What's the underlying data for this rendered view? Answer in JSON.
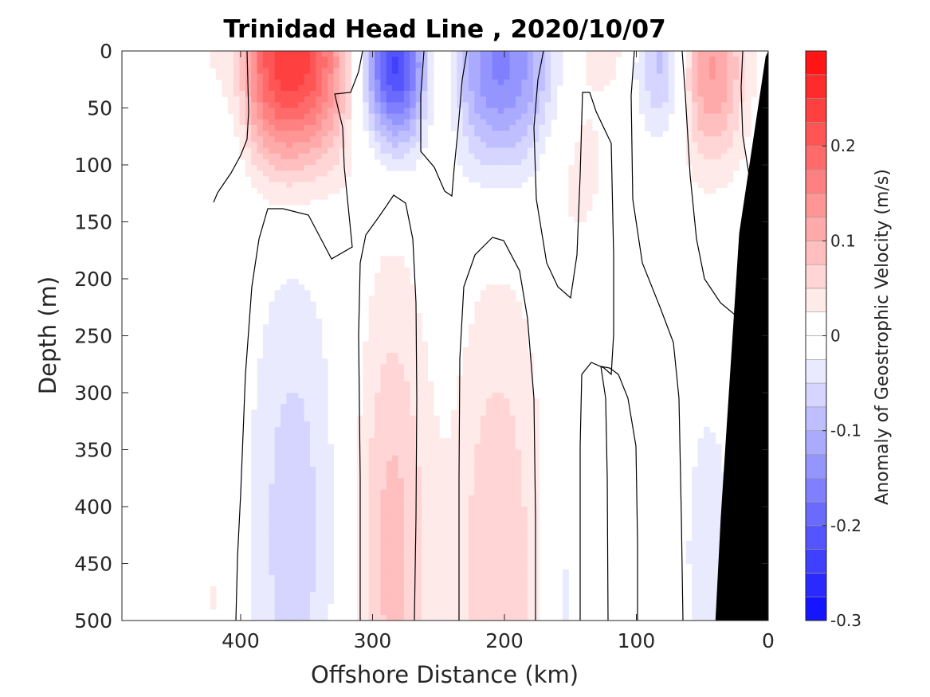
{
  "chart_data": {
    "type": "heatmap",
    "title": "Trinidad Head Line , 2020/10/07",
    "xlabel": "Offshore Distance (km)",
    "ylabel": "Depth (m)",
    "xlim": [
      490,
      0
    ],
    "ylim": [
      0,
      500
    ],
    "x_reversed": true,
    "y_reversed": true,
    "x_ticks": [
      400,
      300,
      200,
      100,
      0
    ],
    "x_tick_labels": [
      "400",
      "300",
      "200",
      "100",
      "0"
    ],
    "y_ticks": [
      0,
      50,
      100,
      150,
      200,
      250,
      300,
      350,
      400,
      450,
      500
    ],
    "y_tick_labels": [
      "0",
      "50",
      "100",
      "150",
      "200",
      "250",
      "300",
      "350",
      "400",
      "450",
      "500"
    ],
    "grid": false,
    "colorbar": {
      "label": "Anomaly of Geostrophic Velocity (m/s)",
      "range": [
        -0.3,
        0.3
      ],
      "step": 0.025,
      "ticks": [
        0.2,
        0.1,
        0,
        -0.1,
        -0.2,
        -0.3
      ],
      "tick_labels": [
        "0.2",
        "0.1",
        "0",
        "-0.1",
        "-0.2",
        "-0.3"
      ],
      "negative_color": "#0000ff",
      "positive_color": "#ff0000",
      "zero_color": "#ffffff"
    },
    "bottom_fill_color": "#000000",
    "contour_color": "#000000",
    "anomaly_features": [
      {
        "x_center": 362,
        "depth_center": 10,
        "x_width": 32,
        "depth_scale": 65,
        "value": 0.25
      },
      {
        "x_center": 284,
        "depth_center": 12,
        "x_width": 18,
        "depth_scale": 50,
        "value": -0.24
      },
      {
        "x_center": 248,
        "depth_center": 15,
        "x_width": 12,
        "depth_scale": 50,
        "value": 0.07
      },
      {
        "x_center": 202,
        "depth_center": 12,
        "x_width": 30,
        "depth_scale": 65,
        "value": -0.16
      },
      {
        "x_center": 405,
        "depth_center": 25,
        "x_width": 12,
        "depth_scale": 70,
        "value": -0.05
      },
      {
        "x_center": 145,
        "depth_center": 80,
        "x_width": 20,
        "depth_scale": 80,
        "value": 0.04
      },
      {
        "x_center": 125,
        "depth_center": 0,
        "x_width": 12,
        "depth_scale": 20,
        "value": 0.04
      },
      {
        "x_center": 80,
        "depth_center": 10,
        "x_width": 14,
        "depth_scale": 45,
        "value": -0.09
      },
      {
        "x_center": 43,
        "depth_center": 15,
        "x_width": 18,
        "depth_scale": 60,
        "value": 0.13
      },
      {
        "x_center": 360,
        "depth_center": 420,
        "x_width": 24,
        "depth_scale": 170,
        "value": -0.065
      },
      {
        "x_center": 285,
        "depth_center": 440,
        "x_width": 20,
        "depth_scale": 170,
        "value": 0.085
      },
      {
        "x_center": 205,
        "depth_center": 460,
        "x_width": 24,
        "depth_scale": 180,
        "value": 0.075
      },
      {
        "x_center": 155,
        "depth_center": 480,
        "x_width": 8,
        "depth_scale": 70,
        "value": -0.035
      },
      {
        "x_center": 80,
        "depth_center": 480,
        "x_width": 4,
        "depth_scale": 40,
        "value": 0.03
      },
      {
        "x_center": 45,
        "depth_center": 440,
        "x_width": 14,
        "depth_scale": 100,
        "value": -0.045
      },
      {
        "x_center": 420,
        "depth_center": 480,
        "x_width": 3,
        "depth_scale": 40,
        "value": 0.03
      }
    ],
    "seafloor_profile": [
      {
        "x": 0,
        "depth": 0
      },
      {
        "x": 2,
        "depth": 5
      },
      {
        "x": 22,
        "depth": 160
      },
      {
        "x": 36,
        "depth": 410
      },
      {
        "x": 40,
        "depth": 500
      }
    ]
  }
}
